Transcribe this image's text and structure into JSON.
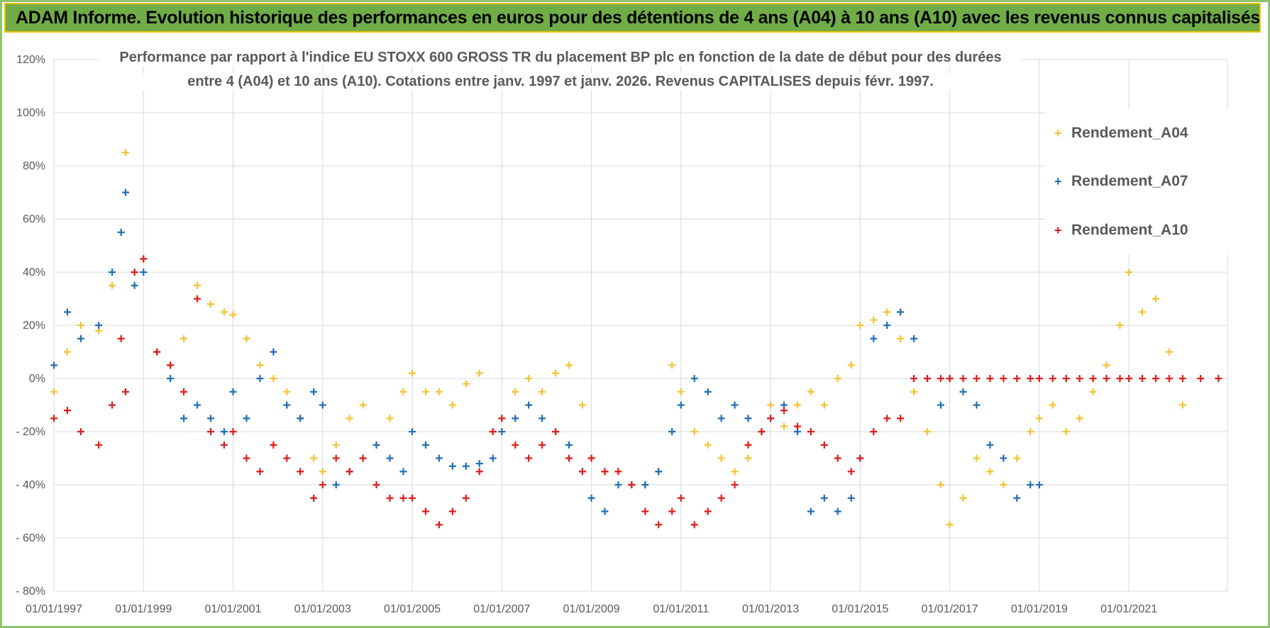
{
  "banner_title": "ADAM Informe. Evolution historique des performances en euros pour des détentions de 4 ans (A04) à 10 ans (A10) avec les revenus connus capitalisés",
  "chart_data": {
    "type": "scatter",
    "title_line1": "Performance par rapport à l'indice EU STOXX 600 GROSS TR  du placement BP plc en fonction de la date de début pour des durées",
    "title_line2": "entre 4 (A04) et 10 ans (A10).  Cotations entre janv. 1997 et janv. 2026. Revenus CAPITALISES depuis févr. 1997.",
    "xlabel": "",
    "ylabel": "",
    "x_range": [
      1997.0,
      2023.2
    ],
    "ylim": [
      -80,
      120
    ],
    "y_ticks": [
      120,
      100,
      80,
      60,
      40,
      20,
      0,
      -20,
      -40,
      -60,
      -80
    ],
    "y_tick_labels": [
      "120%",
      "100%",
      "80%",
      "60%",
      "40%",
      "20%",
      "0%",
      "- 20%",
      "- 40%",
      "- 60%",
      "- 80%"
    ],
    "x_ticks": [
      1997,
      1999,
      2001,
      2003,
      2005,
      2007,
      2009,
      2011,
      2013,
      2015,
      2017,
      2019,
      2021
    ],
    "x_tick_labels": [
      "01/01/1997",
      "01/01/1999",
      "01/01/2001",
      "01/01/2003",
      "01/01/2005",
      "01/01/2007",
      "01/01/2009",
      "01/01/2011",
      "01/01/2013",
      "01/01/2015",
      "01/01/2017",
      "01/01/2019",
      "01/01/2021"
    ],
    "grid": true,
    "legend_position": "top-right",
    "series": [
      {
        "name": "Rendement_A04",
        "color": "#f5c330",
        "x": [
          1997.0,
          1997.3,
          1997.6,
          1998.0,
          1998.3,
          1998.5,
          1998.6,
          1998.8,
          1999.0,
          1999.3,
          1999.6,
          1999.9,
          2000.2,
          2000.5,
          2000.8,
          2001.0,
          2001.3,
          2001.6,
          2001.9,
          2002.2,
          2002.5,
          2002.8,
          2003.0,
          2003.3,
          2003.6,
          2003.9,
          2004.2,
          2004.5,
          2004.8,
          2005.0,
          2005.3,
          2005.6,
          2005.9,
          2006.2,
          2006.5,
          2006.8,
          2007.0,
          2007.3,
          2007.6,
          2007.9,
          2008.2,
          2008.5,
          2008.8,
          2009.0,
          2009.3,
          2009.6,
          2009.9,
          2010.2,
          2010.5,
          2010.8,
          2011.0,
          2011.3,
          2011.6,
          2011.9,
          2012.2,
          2012.5,
          2012.8,
          2013.0,
          2013.3,
          2013.6,
          2013.9,
          2014.2,
          2014.5,
          2014.8,
          2015.0,
          2015.3,
          2015.6,
          2015.9,
          2016.2,
          2016.5,
          2016.8,
          2017.0,
          2017.3,
          2017.6,
          2017.9,
          2018.2,
          2018.5,
          2018.8,
          2019.0,
          2019.3,
          2019.6,
          2019.9,
          2020.2,
          2020.5,
          2020.8,
          2021.0,
          2021.3,
          2021.6,
          2021.9,
          2022.2
        ],
        "y": [
          -5,
          10,
          20,
          18,
          35,
          55,
          85,
          40,
          45,
          10,
          5,
          15,
          35,
          28,
          25,
          24,
          15,
          5,
          0,
          -5,
          -15,
          -30,
          -35,
          -25,
          -15,
          -10,
          -25,
          -15,
          -5,
          2,
          -5,
          -5,
          -10,
          -2,
          2,
          -20,
          -15,
          -5,
          0,
          -5,
          2,
          5,
          -10,
          -30,
          -35,
          -35,
          -40,
          -40,
          -35,
          5,
          -5,
          -20,
          -25,
          -30,
          -35,
          -30,
          -20,
          -10,
          -18,
          -10,
          -5,
          -10,
          0,
          5,
          20,
          22,
          25,
          15,
          -5,
          -20,
          -40,
          -55,
          -45,
          -30,
          -35,
          -40,
          -30,
          -20,
          -15,
          -10,
          -20,
          -15,
          -5,
          5,
          20,
          40,
          25,
          30,
          10,
          -10
        ]
      },
      {
        "name": "Rendement_A07",
        "color": "#1f6eb8",
        "x": [
          1997.0,
          1997.3,
          1997.6,
          1998.0,
          1998.3,
          1998.5,
          1998.6,
          1998.8,
          1999.0,
          1999.3,
          1999.6,
          1999.9,
          2000.2,
          2000.5,
          2000.8,
          2001.0,
          2001.3,
          2001.6,
          2001.9,
          2002.2,
          2002.5,
          2002.8,
          2003.0,
          2003.3,
          2003.6,
          2003.9,
          2004.2,
          2004.5,
          2004.8,
          2005.0,
          2005.3,
          2005.6,
          2005.9,
          2006.2,
          2006.5,
          2006.8,
          2007.0,
          2007.3,
          2007.6,
          2007.9,
          2008.2,
          2008.5,
          2008.8,
          2009.0,
          2009.3,
          2009.6,
          2009.9,
          2010.2,
          2010.5,
          2010.8,
          2011.0,
          2011.3,
          2011.6,
          2011.9,
          2012.2,
          2012.5,
          2012.8,
          2013.0,
          2013.3,
          2013.6,
          2013.9,
          2014.2,
          2014.5,
          2014.8,
          2015.0,
          2015.3,
          2015.6,
          2015.9,
          2016.2,
          2016.5,
          2016.8,
          2017.0,
          2017.3,
          2017.6,
          2017.9,
          2018.2,
          2018.5,
          2018.8,
          2019.0
        ],
        "y": [
          5,
          25,
          15,
          20,
          40,
          55,
          70,
          35,
          40,
          10,
          0,
          -15,
          -10,
          -15,
          -20,
          -5,
          -15,
          0,
          10,
          -10,
          -15,
          -5,
          -10,
          -40,
          -35,
          -30,
          -25,
          -30,
          -35,
          -20,
          -25,
          -30,
          -33,
          -33,
          -32,
          -30,
          -20,
          -15,
          -10,
          -15,
          -20,
          -25,
          -35,
          -45,
          -50,
          -40,
          -40,
          -40,
          -35,
          -20,
          -10,
          0,
          -5,
          -15,
          -10,
          -15,
          -20,
          -15,
          -10,
          -20,
          -50,
          -45,
          -50,
          -45,
          -30,
          15,
          20,
          25,
          15,
          0,
          -10,
          0,
          -5,
          -10,
          -25,
          -30,
          -45,
          -40,
          -40
        ]
      },
      {
        "name": "Rendement_A10",
        "color": "#e01b1b",
        "x": [
          1997.0,
          1997.3,
          1997.6,
          1998.0,
          1998.3,
          1998.5,
          1998.6,
          1998.8,
          1999.0,
          1999.3,
          1999.6,
          1999.9,
          2000.2,
          2000.5,
          2000.8,
          2001.0,
          2001.3,
          2001.6,
          2001.9,
          2002.2,
          2002.5,
          2002.8,
          2003.0,
          2003.3,
          2003.6,
          2003.9,
          2004.2,
          2004.5,
          2004.8,
          2005.0,
          2005.3,
          2005.6,
          2005.9,
          2006.2,
          2006.5,
          2006.8,
          2007.0,
          2007.3,
          2007.6,
          2007.9,
          2008.2,
          2008.5,
          2008.8,
          2009.0,
          2009.3,
          2009.6,
          2009.9,
          2010.2,
          2010.5,
          2010.8,
          2011.0,
          2011.3,
          2011.6,
          2011.9,
          2012.2,
          2012.5,
          2012.8,
          2013.0,
          2013.3,
          2013.6,
          2013.9,
          2014.2,
          2014.5,
          2014.8,
          2015.0,
          2015.3,
          2015.6,
          2015.9,
          2016.2,
          2016.5,
          2016.8,
          2017.0,
          2017.3,
          2017.6,
          2017.9,
          2018.2,
          2018.5,
          2018.8,
          2019.0,
          2019.3,
          2019.6,
          2019.9,
          2020.2,
          2020.5,
          2020.8,
          2021.0,
          2021.3,
          2021.6,
          2021.9,
          2022.2,
          2022.6,
          2023.0
        ],
        "y": [
          -15,
          -12,
          -20,
          -25,
          -10,
          15,
          -5,
          40,
          45,
          10,
          5,
          -5,
          30,
          -20,
          -25,
          -20,
          -30,
          -35,
          -25,
          -30,
          -35,
          -45,
          -40,
          -30,
          -35,
          -30,
          -40,
          -45,
          -45,
          -45,
          -50,
          -55,
          -50,
          -45,
          -35,
          -20,
          -15,
          -25,
          -30,
          -25,
          -20,
          -30,
          -35,
          -30,
          -35,
          -35,
          -40,
          -50,
          -55,
          -50,
          -45,
          -55,
          -50,
          -45,
          -40,
          -25,
          -20,
          -15,
          -12,
          -18,
          -20,
          -25,
          -30,
          -35,
          -30,
          -20,
          -15,
          -15,
          0,
          0,
          0,
          0,
          0,
          0,
          0,
          0,
          0,
          0,
          0,
          0,
          0,
          0,
          0,
          0,
          0,
          0,
          0,
          0,
          0,
          0,
          0,
          0
        ]
      }
    ]
  }
}
